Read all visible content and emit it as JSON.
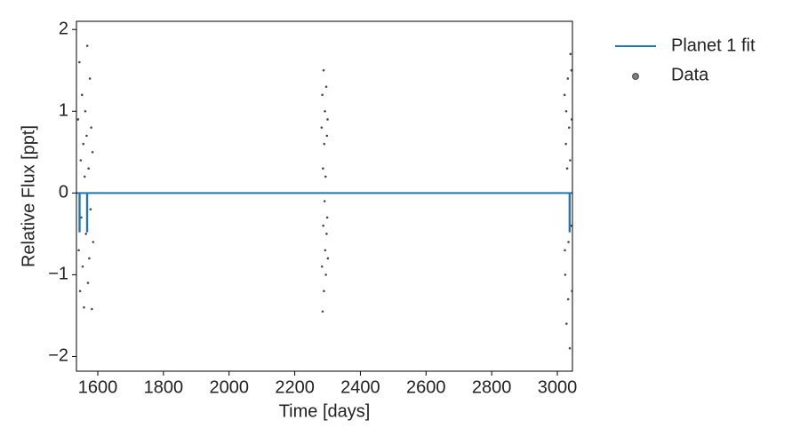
{
  "chart_data": {
    "type": "scatter",
    "x_label": "Time [days]",
    "y_label": "Relative Flux [ppt]",
    "xlim": [
      1535,
      3046
    ],
    "ylim": [
      -2.18,
      2.1
    ],
    "xticks": [
      1600,
      1800,
      2000,
      2200,
      2400,
      2600,
      2800,
      3000
    ],
    "yticks": [
      {
        "value": -2,
        "label": "−2"
      },
      {
        "value": -1,
        "label": "−1"
      },
      0,
      1,
      2
    ],
    "legend": "upper right",
    "series": [
      {
        "name": "Planet 1 fit",
        "type": "line",
        "color": "#1f77b4",
        "x": [
          1535,
          1544,
          1544,
          1545,
          1545,
          1567,
          1567,
          1568,
          1568,
          3037,
          3037,
          3038,
          3038,
          3046
        ],
        "values": [
          0,
          0,
          -0.47,
          -0.47,
          0,
          0,
          -0.47,
          -0.47,
          0,
          0,
          -0.47,
          -0.47,
          0,
          0
        ]
      },
      {
        "name": "Data",
        "type": "scatter",
        "color": "#000000",
        "x": [
          1540,
          1542,
          1544,
          1546,
          1548,
          1550,
          1552,
          1554,
          1556,
          1558,
          1560,
          1562,
          1564,
          1566,
          1568,
          1570,
          1572,
          1574,
          1576,
          1578,
          1580,
          1582,
          1584,
          1586,
          2282,
          2283,
          2284,
          2285,
          2286,
          2287,
          2288,
          2289,
          2290,
          2291,
          2292,
          2293,
          2294,
          2295,
          2296,
          2297,
          2298,
          2299,
          2300,
          2301,
          3022,
          3024,
          3026,
          3028,
          3030,
          3032,
          3034,
          3036,
          3038,
          3040,
          3042,
          3044,
          3045,
          3023,
          3027,
          3033,
          3039,
          3043
        ],
        "values": [
          0.9,
          -0.7,
          1.6,
          -1.2,
          0.4,
          -0.3,
          1.2,
          -0.9,
          0.6,
          -1.4,
          0.2,
          1.0,
          -0.5,
          0.7,
          1.8,
          -1.1,
          0.3,
          -0.8,
          1.4,
          -0.2,
          0.8,
          -1.42,
          0.5,
          -0.6,
          0.8,
          -0.9,
          1.2,
          -1.45,
          0.3,
          -0.4,
          1.5,
          -1.2,
          0.6,
          -0.1,
          1.0,
          -0.7,
          0.2,
          -1.0,
          1.3,
          -0.5,
          0.7,
          -0.3,
          0.9,
          -0.8,
          1.2,
          -1.0,
          0.6,
          -1.6,
          0.3,
          1.4,
          -0.6,
          0.8,
          -1.9,
          1.7,
          -0.4,
          0.9,
          -1.2,
          -0.7,
          1.0,
          -1.3,
          0.4,
          1.5
        ]
      }
    ]
  }
}
